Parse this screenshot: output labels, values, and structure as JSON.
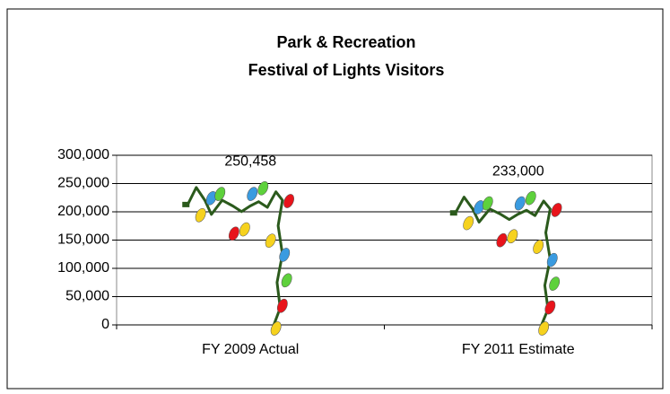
{
  "chart_data": {
    "type": "bar",
    "title": [
      "Park & Recreation",
      "Festival of Lights Visitors"
    ],
    "categories": [
      "FY 2009 Actual",
      "FY 2011 Estimate"
    ],
    "values": [
      250458,
      233000
    ],
    "value_labels": [
      "250,458",
      "233,000"
    ],
    "color": "#2b5a1c",
    "bulb_colors": [
      "#f6d21e",
      "#e8141b",
      "#5ed13c",
      "#3a9be0"
    ],
    "ylim": [
      0,
      300000
    ],
    "yticks": [
      0,
      {
        "value": 50000,
        "label": "50,000"
      },
      {
        "value": 100000,
        "label": "100,000"
      },
      {
        "value": 150000,
        "label": "150,000"
      },
      {
        "value": 200000,
        "label": "200,000"
      },
      {
        "value": 250000,
        "label": "250,000"
      },
      {
        "value": 300000,
        "label": "300,000"
      }
    ],
    "grid": true
  }
}
